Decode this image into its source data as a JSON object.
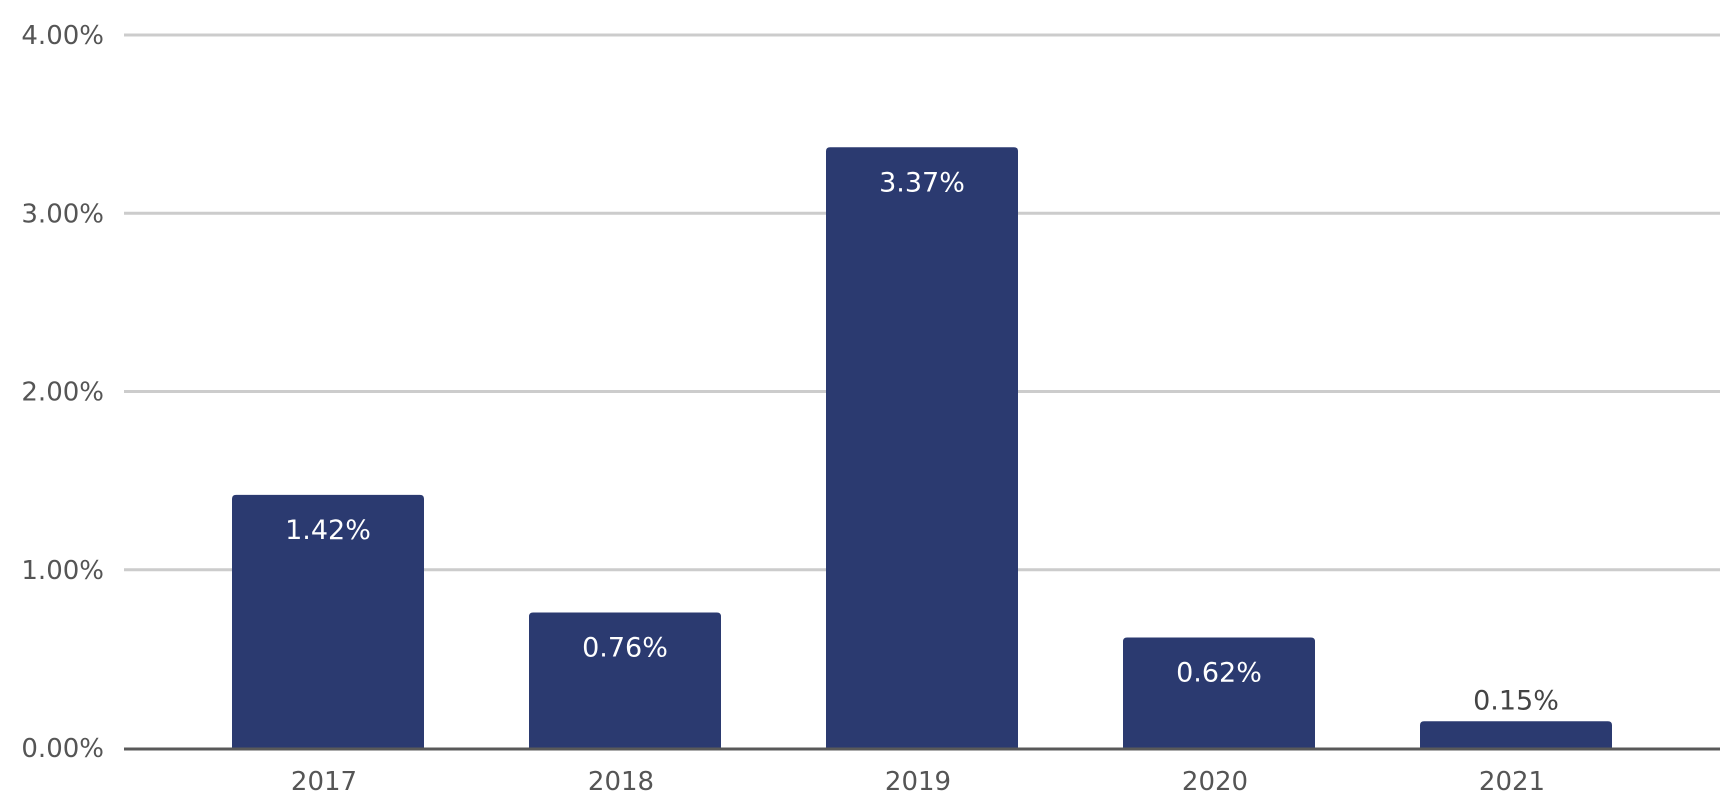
{
  "chart_data": {
    "type": "bar",
    "categories": [
      "2017",
      "2018",
      "2019",
      "2020",
      "2021"
    ],
    "values": [
      1.42,
      0.76,
      3.37,
      0.62,
      0.15
    ],
    "data_labels": [
      "1.42%",
      "0.76%",
      "3.37%",
      "0.62%",
      "0.15%"
    ],
    "y_ticks": [
      0,
      1,
      2,
      3,
      4
    ],
    "y_tick_labels": [
      "0.00%",
      "1.00%",
      "2.00%",
      "3.00%",
      "4.00%"
    ],
    "ylim": [
      0,
      4
    ],
    "title": "",
    "xlabel": "",
    "ylabel": "",
    "grid": true,
    "legend": "none",
    "colors": {
      "bar": "#2b3a70",
      "grid": "#cccccc",
      "axis": "#595959",
      "tick_text": "#555555",
      "label_inside": "#ffffff",
      "label_outside": "#444444"
    }
  }
}
